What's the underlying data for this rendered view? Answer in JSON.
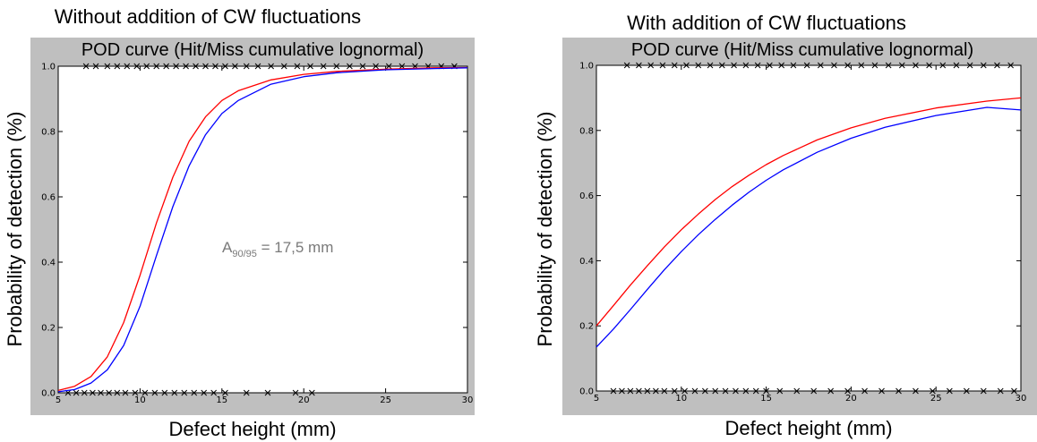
{
  "chart_data": [
    {
      "type": "line",
      "suptitle": "Without addition of CW fluctuations",
      "title": "POD curve (Hit/Miss cumulative lognormal)",
      "xlabel": "Defect height (mm)",
      "ylabel": "Probability of detection (%)",
      "xlim": [
        5,
        30
      ],
      "ylim": [
        0.0,
        1.0
      ],
      "xticks": [
        "5",
        "10",
        "15",
        "20",
        "25",
        "30"
      ],
      "yticks": [
        "0.0",
        "0.2",
        "0.4",
        "0.6",
        "0.8",
        "1.0"
      ],
      "grid": false,
      "annotation": {
        "main": "A",
        "sub": "90/95",
        "rest": " = 17,5 mm"
      },
      "series": [
        {
          "color": "#ff0000",
          "x": [
            5,
            6,
            7,
            8,
            9,
            10,
            11,
            12,
            13,
            14,
            15,
            16,
            18,
            20,
            22,
            25,
            28,
            30
          ],
          "y": [
            0.007,
            0.02,
            0.05,
            0.11,
            0.215,
            0.36,
            0.52,
            0.66,
            0.77,
            0.845,
            0.895,
            0.925,
            0.958,
            0.975,
            0.984,
            0.991,
            0.995,
            0.996
          ]
        },
        {
          "color": "#0000ff",
          "x": [
            5,
            6,
            7,
            8,
            9,
            10,
            11,
            12,
            13,
            14,
            15,
            16,
            18,
            20,
            22,
            25,
            28,
            30
          ],
          "y": [
            0.003,
            0.01,
            0.03,
            0.07,
            0.145,
            0.265,
            0.42,
            0.57,
            0.695,
            0.79,
            0.855,
            0.895,
            0.945,
            0.968,
            0.98,
            0.989,
            0.993,
            0.995
          ]
        }
      ],
      "hits_x": [
        6.7,
        7.3,
        8.0,
        8.6,
        9.2,
        9.8,
        10.4,
        11.0,
        11.6,
        12.2,
        12.8,
        13.4,
        14.0,
        14.6,
        15.2,
        15.8,
        16.5,
        17.2,
        18.0,
        18.8,
        19.6,
        20.4,
        21.2,
        22.0,
        22.8,
        23.6,
        24.4,
        25.2,
        26.0,
        26.8,
        27.6,
        28.4,
        29.2
      ],
      "misses_x": [
        5.6,
        6.1,
        6.6,
        7.1,
        7.6,
        8.1,
        8.6,
        9.1,
        9.7,
        10.3,
        10.9,
        11.5,
        12.1,
        12.7,
        13.3,
        13.9,
        14.5,
        15.2,
        16.5,
        17.8,
        19.5,
        20.5
      ]
    },
    {
      "type": "line",
      "suptitle": "With addition of CW fluctuations",
      "title": "POD curve (Hit/Miss cumulative lognormal)",
      "xlabel": "Defect height (mm)",
      "ylabel": "Probability of detection (%)",
      "xlim": [
        5,
        30
      ],
      "ylim": [
        0.0,
        1.0
      ],
      "xticks": [
        "5",
        "10",
        "15",
        "20",
        "25",
        "30"
      ],
      "yticks": [
        "0.0",
        "0.2",
        "0.4",
        "0.6",
        "0.8",
        "1.0"
      ],
      "grid": false,
      "series": [
        {
          "color": "#ff0000",
          "x": [
            5,
            6,
            7,
            8,
            9,
            10,
            11,
            12,
            13,
            14,
            15,
            16,
            18,
            20,
            22,
            25,
            28,
            30
          ],
          "y": [
            0.2,
            0.262,
            0.325,
            0.385,
            0.442,
            0.495,
            0.543,
            0.588,
            0.628,
            0.663,
            0.695,
            0.723,
            0.771,
            0.808,
            0.837,
            0.869,
            0.89,
            0.9
          ]
        },
        {
          "color": "#0000ff",
          "x": [
            5,
            6,
            7,
            8,
            9,
            10,
            11,
            12,
            13,
            14,
            15,
            16,
            18,
            20,
            22,
            25,
            28,
            30
          ],
          "y": [
            0.135,
            0.19,
            0.25,
            0.312,
            0.372,
            0.428,
            0.48,
            0.527,
            0.571,
            0.611,
            0.647,
            0.679,
            0.733,
            0.776,
            0.81,
            0.846,
            0.871,
            0.863
          ]
        }
      ],
      "hits_x": [
        6.8,
        7.5,
        8.2,
        8.9,
        9.6,
        10.3,
        11.0,
        11.7,
        12.4,
        13.1,
        13.8,
        14.5,
        15.2,
        15.9,
        16.6,
        17.4,
        18.2,
        19.0,
        19.8,
        20.6,
        21.4,
        22.2,
        23.0,
        23.8,
        24.6,
        25.4,
        26.2,
        27.0,
        27.8,
        28.6,
        29.4
      ],
      "misses_x": [
        6.0,
        6.5,
        7.0,
        7.5,
        8.0,
        8.5,
        9.0,
        9.6,
        10.2,
        10.8,
        11.4,
        12.0,
        12.6,
        13.2,
        13.8,
        14.4,
        15.0,
        15.8,
        16.8,
        17.8,
        18.8,
        19.8,
        20.8,
        21.8,
        22.8,
        23.8,
        24.8,
        25.8,
        26.8,
        27.8,
        28.8,
        29.6
      ]
    }
  ]
}
